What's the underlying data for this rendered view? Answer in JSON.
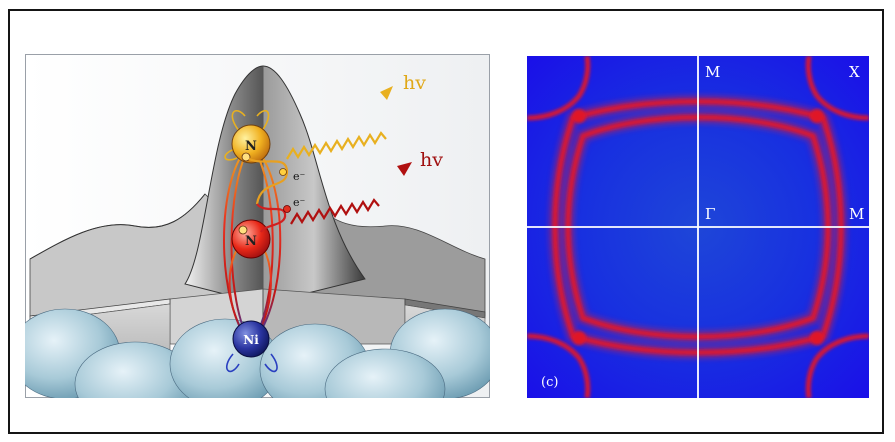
{
  "left_panel": {
    "atoms": {
      "top_n": "N",
      "middle_n": "N",
      "substrate": "Ni"
    },
    "photons": {
      "upper": "hv",
      "lower": "hv"
    },
    "electrons": {
      "upper": "e⁻",
      "lower": "e⁻"
    }
  },
  "right_panel": {
    "panel_label": "(c)",
    "labels": {
      "top_center": "M",
      "top_right": "X",
      "center": "Γ",
      "right_center": "M"
    }
  },
  "colors": {
    "background_blue": "#1a1ae0",
    "band_red": "#d81830",
    "photon_gold": "#e8b020",
    "photon_red": "#b01010"
  }
}
